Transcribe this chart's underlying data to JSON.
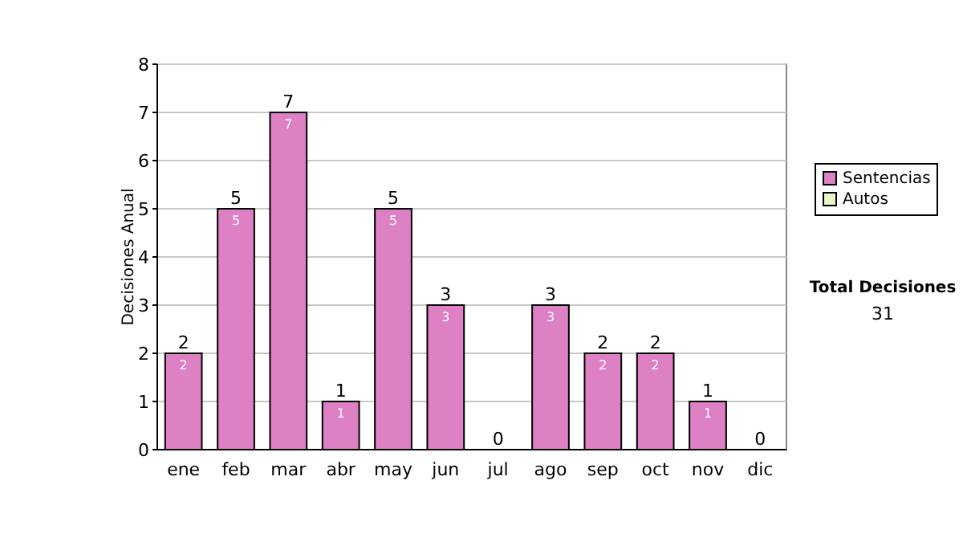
{
  "chart_data": {
    "type": "bar",
    "ylabel": "Decisiones Anual",
    "categories": [
      "ene",
      "feb",
      "mar",
      "abr",
      "may",
      "jun",
      "jul",
      "ago",
      "sep",
      "oct",
      "nov",
      "dic"
    ],
    "series": [
      {
        "name": "Sentencias",
        "color": "#dd80c4",
        "values": [
          2,
          5,
          7,
          1,
          5,
          3,
          0,
          3,
          2,
          2,
          1,
          0
        ],
        "value_labels": [
          "2",
          "5",
          "7",
          "1",
          "5",
          "3",
          null,
          "3",
          "2",
          "2",
          "1",
          null
        ]
      },
      {
        "name": "Autos",
        "color": "#eaf5c8",
        "values": [
          0,
          0,
          0,
          0,
          0,
          0,
          0,
          0,
          0,
          0,
          0,
          0
        ]
      }
    ],
    "stacked": true,
    "totals": [
      "2",
      "5",
      "7",
      "1",
      "5",
      "3",
      "0",
      "3",
      "2",
      "2",
      "1",
      "0"
    ],
    "ylim": [
      0,
      8
    ],
    "yticks": [
      0,
      1,
      2,
      3,
      4,
      5,
      6,
      7,
      8
    ],
    "grid": "y",
    "legend": "right",
    "annotations": [
      "Total Decisiones",
      "31"
    ]
  }
}
